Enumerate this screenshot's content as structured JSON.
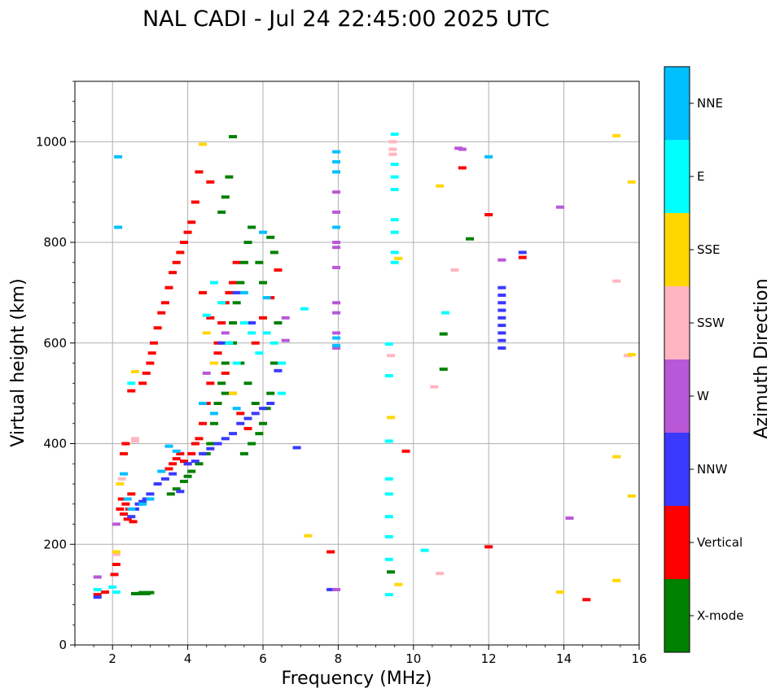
{
  "chart_data": {
    "type": "scatter",
    "title": "NAL CADI - Jul 24 22:45:00 2025 UTC",
    "xlabel": "Frequency (MHz)",
    "ylabel": "Virtual height (km)",
    "xlim": [
      1,
      16
    ],
    "ylim": [
      0,
      1120
    ],
    "xticks": [
      2,
      4,
      6,
      8,
      10,
      12,
      14,
      16
    ],
    "yticks": [
      0,
      200,
      400,
      600,
      800,
      1000
    ],
    "grid": true,
    "colorbar": {
      "label": "Azimuth Direction",
      "categories": [
        {
          "name": "NNE",
          "color": "#00bfff"
        },
        {
          "name": "E",
          "color": "#00ffff"
        },
        {
          "name": "SSE",
          "color": "#ffd700"
        },
        {
          "name": "SSW",
          "color": "#ffb6c1"
        },
        {
          "name": "W",
          "color": "#b858d8"
        },
        {
          "name": "NNW",
          "color": "#3a3aff"
        },
        {
          "name": "Vertical",
          "color": "#ff0000"
        },
        {
          "name": "X-mode",
          "color": "#008000"
        }
      ]
    },
    "series": [
      {
        "name": "Vertical",
        "points": [
          [
            1.6,
            100
          ],
          [
            1.8,
            105
          ],
          [
            2.05,
            140
          ],
          [
            2.1,
            160
          ],
          [
            2.2,
            270
          ],
          [
            2.25,
            290
          ],
          [
            2.3,
            260
          ],
          [
            2.35,
            280
          ],
          [
            2.4,
            250
          ],
          [
            2.45,
            270
          ],
          [
            2.5,
            300
          ],
          [
            2.55,
            245
          ],
          [
            2.3,
            380
          ],
          [
            2.35,
            400
          ],
          [
            2.5,
            505
          ],
          [
            2.8,
            520
          ],
          [
            2.9,
            540
          ],
          [
            3.0,
            560
          ],
          [
            3.05,
            580
          ],
          [
            3.1,
            600
          ],
          [
            3.2,
            630
          ],
          [
            3.3,
            660
          ],
          [
            3.4,
            680
          ],
          [
            3.5,
            710
          ],
          [
            3.6,
            740
          ],
          [
            3.7,
            760
          ],
          [
            3.8,
            780
          ],
          [
            3.9,
            800
          ],
          [
            4.0,
            820
          ],
          [
            4.1,
            840
          ],
          [
            4.2,
            880
          ],
          [
            4.3,
            940
          ],
          [
            4.6,
            920
          ],
          [
            3.5,
            350
          ],
          [
            3.6,
            360
          ],
          [
            3.7,
            370
          ],
          [
            3.8,
            380
          ],
          [
            3.9,
            365
          ],
          [
            4.0,
            360
          ],
          [
            4.1,
            380
          ],
          [
            4.2,
            400
          ],
          [
            4.3,
            410
          ],
          [
            4.4,
            440
          ],
          [
            4.5,
            480
          ],
          [
            4.6,
            520
          ],
          [
            4.7,
            560
          ],
          [
            4.8,
            600
          ],
          [
            4.9,
            640
          ],
          [
            5.0,
            680
          ],
          [
            5.1,
            700
          ],
          [
            5.2,
            720
          ],
          [
            5.3,
            760
          ],
          [
            4.4,
            700
          ],
          [
            4.6,
            650
          ],
          [
            4.8,
            580
          ],
          [
            5.0,
            540
          ],
          [
            5.2,
            500
          ],
          [
            5.4,
            460
          ],
          [
            5.6,
            430
          ],
          [
            5.8,
            600
          ],
          [
            6.0,
            650
          ],
          [
            6.2,
            690
          ],
          [
            6.4,
            745
          ],
          [
            9.8,
            385
          ],
          [
            7.8,
            185
          ],
          [
            11.3,
            948
          ],
          [
            12.0,
            855
          ],
          [
            12.0,
            195
          ],
          [
            12.9,
            770
          ],
          [
            14.6,
            90
          ]
        ]
      },
      {
        "name": "X-mode",
        "points": [
          [
            2.6,
            102
          ],
          [
            2.7,
            102
          ],
          [
            2.8,
            104
          ],
          [
            2.9,
            102
          ],
          [
            3.0,
            104
          ],
          [
            3.55,
            300
          ],
          [
            3.7,
            310
          ],
          [
            3.9,
            325
          ],
          [
            4.0,
            335
          ],
          [
            4.1,
            345
          ],
          [
            4.3,
            360
          ],
          [
            4.5,
            380
          ],
          [
            4.6,
            400
          ],
          [
            4.7,
            440
          ],
          [
            4.8,
            480
          ],
          [
            4.9,
            520
          ],
          [
            5.0,
            560
          ],
          [
            5.1,
            600
          ],
          [
            5.2,
            640
          ],
          [
            5.3,
            680
          ],
          [
            5.4,
            720
          ],
          [
            5.5,
            760
          ],
          [
            5.6,
            800
          ],
          [
            5.7,
            830
          ],
          [
            4.9,
            860
          ],
          [
            5.0,
            890
          ],
          [
            5.1,
            930
          ],
          [
            5.2,
            1010
          ],
          [
            5.5,
            380
          ],
          [
            5.7,
            400
          ],
          [
            5.9,
            420
          ],
          [
            6.0,
            440
          ],
          [
            6.1,
            470
          ],
          [
            6.2,
            500
          ],
          [
            6.3,
            560
          ],
          [
            6.4,
            640
          ],
          [
            5.8,
            480
          ],
          [
            5.6,
            520
          ],
          [
            5.4,
            560
          ],
          [
            5.2,
            600
          ],
          [
            5.0,
            500
          ],
          [
            5.9,
            760
          ],
          [
            6.0,
            720
          ],
          [
            6.2,
            810
          ],
          [
            6.3,
            780
          ],
          [
            9.4,
            145
          ],
          [
            10.8,
            548
          ],
          [
            10.8,
            618
          ],
          [
            11.5,
            807
          ]
        ]
      },
      {
        "name": "NNW",
        "points": [
          [
            1.6,
            95
          ],
          [
            2.5,
            255
          ],
          [
            2.6,
            270
          ],
          [
            2.7,
            280
          ],
          [
            2.8,
            285
          ],
          [
            2.9,
            290
          ],
          [
            3.0,
            300
          ],
          [
            3.2,
            320
          ],
          [
            3.4,
            330
          ],
          [
            3.6,
            340
          ],
          [
            3.8,
            305
          ],
          [
            4.0,
            360
          ],
          [
            4.2,
            365
          ],
          [
            4.4,
            380
          ],
          [
            4.6,
            390
          ],
          [
            4.8,
            400
          ],
          [
            5.0,
            410
          ],
          [
            5.2,
            420
          ],
          [
            5.4,
            440
          ],
          [
            5.6,
            450
          ],
          [
            5.8,
            460
          ],
          [
            6.0,
            470
          ],
          [
            6.2,
            480
          ],
          [
            6.4,
            545
          ],
          [
            4.9,
            600
          ],
          [
            5.3,
            700
          ],
          [
            5.7,
            640
          ],
          [
            6.9,
            392
          ],
          [
            7.8,
            110
          ],
          [
            12.35,
            590
          ],
          [
            12.35,
            605
          ],
          [
            12.35,
            620
          ],
          [
            12.35,
            635
          ],
          [
            12.35,
            650
          ],
          [
            12.35,
            665
          ],
          [
            12.35,
            680
          ],
          [
            12.35,
            695
          ],
          [
            12.35,
            710
          ],
          [
            12.9,
            780
          ]
        ]
      },
      {
        "name": "W",
        "points": [
          [
            1.6,
            135
          ],
          [
            2.1,
            240
          ],
          [
            4.5,
            540
          ],
          [
            5.0,
            620
          ],
          [
            6.6,
            605
          ],
          [
            6.6,
            650
          ],
          [
            7.95,
            110
          ],
          [
            7.95,
            590
          ],
          [
            7.95,
            620
          ],
          [
            7.95,
            660
          ],
          [
            7.95,
            680
          ],
          [
            7.95,
            750
          ],
          [
            7.95,
            790
          ],
          [
            7.95,
            800
          ],
          [
            7.95,
            860
          ],
          [
            7.95,
            900
          ],
          [
            11.2,
            987
          ],
          [
            11.3,
            985
          ],
          [
            12.35,
            765
          ],
          [
            13.9,
            870
          ],
          [
            14.15,
            252
          ]
        ]
      },
      {
        "name": "SSW",
        "points": [
          [
            2.1,
            180
          ],
          [
            2.25,
            330
          ],
          [
            2.6,
            410
          ],
          [
            2.6,
            405
          ],
          [
            9.45,
            975
          ],
          [
            9.45,
            985
          ],
          [
            9.45,
            1000
          ],
          [
            9.4,
            575
          ],
          [
            10.55,
            513
          ],
          [
            10.7,
            142
          ],
          [
            11.1,
            745
          ],
          [
            15.4,
            723
          ],
          [
            15.7,
            575
          ]
        ]
      },
      {
        "name": "SSE",
        "points": [
          [
            2.1,
            185
          ],
          [
            2.2,
            320
          ],
          [
            2.6,
            543
          ],
          [
            4.4,
            995
          ],
          [
            4.5,
            620
          ],
          [
            4.7,
            560
          ],
          [
            5.2,
            500
          ],
          [
            7.2,
            217
          ],
          [
            9.4,
            452
          ],
          [
            9.6,
            120
          ],
          [
            9.6,
            768
          ],
          [
            10.7,
            912
          ],
          [
            13.9,
            105
          ],
          [
            15.4,
            128
          ],
          [
            15.4,
            374
          ],
          [
            15.4,
            1012
          ],
          [
            15.8,
            296
          ],
          [
            15.8,
            920
          ],
          [
            15.8,
            577
          ]
        ]
      },
      {
        "name": "E",
        "points": [
          [
            1.6,
            110
          ],
          [
            2.0,
            115
          ],
          [
            2.1,
            105
          ],
          [
            2.5,
            520
          ],
          [
            4.5,
            655
          ],
          [
            4.7,
            720
          ],
          [
            4.9,
            680
          ],
          [
            5.1,
            600
          ],
          [
            5.3,
            560
          ],
          [
            5.5,
            640
          ],
          [
            5.7,
            620
          ],
          [
            5.9,
            580
          ],
          [
            6.1,
            620
          ],
          [
            6.3,
            600
          ],
          [
            6.5,
            500
          ],
          [
            6.5,
            560
          ],
          [
            7.1,
            668
          ],
          [
            9.35,
            100
          ],
          [
            9.35,
            170
          ],
          [
            9.35,
            215
          ],
          [
            9.35,
            255
          ],
          [
            9.35,
            300
          ],
          [
            9.35,
            330
          ],
          [
            9.35,
            405
          ],
          [
            9.35,
            535
          ],
          [
            9.35,
            598
          ],
          [
            9.5,
            760
          ],
          [
            9.5,
            780
          ],
          [
            9.5,
            820
          ],
          [
            9.5,
            845
          ],
          [
            9.5,
            905
          ],
          [
            9.5,
            930
          ],
          [
            9.5,
            955
          ],
          [
            9.5,
            1015
          ],
          [
            10.3,
            188
          ],
          [
            10.85,
            660
          ]
        ]
      },
      {
        "name": "NNE",
        "points": [
          [
            2.15,
            970
          ],
          [
            2.15,
            830
          ],
          [
            2.3,
            340
          ],
          [
            2.4,
            290
          ],
          [
            2.5,
            270
          ],
          [
            2.8,
            280
          ],
          [
            3.0,
            290
          ],
          [
            3.3,
            345
          ],
          [
            3.5,
            395
          ],
          [
            3.7,
            385
          ],
          [
            4.4,
            480
          ],
          [
            4.7,
            460
          ],
          [
            5.5,
            700
          ],
          [
            6.1,
            690
          ],
          [
            6.0,
            820
          ],
          [
            5.3,
            470
          ],
          [
            7.95,
            595
          ],
          [
            7.95,
            610
          ],
          [
            7.95,
            830
          ],
          [
            7.95,
            940
          ],
          [
            7.95,
            960
          ],
          [
            7.95,
            980
          ],
          [
            12.0,
            970
          ]
        ]
      }
    ]
  }
}
